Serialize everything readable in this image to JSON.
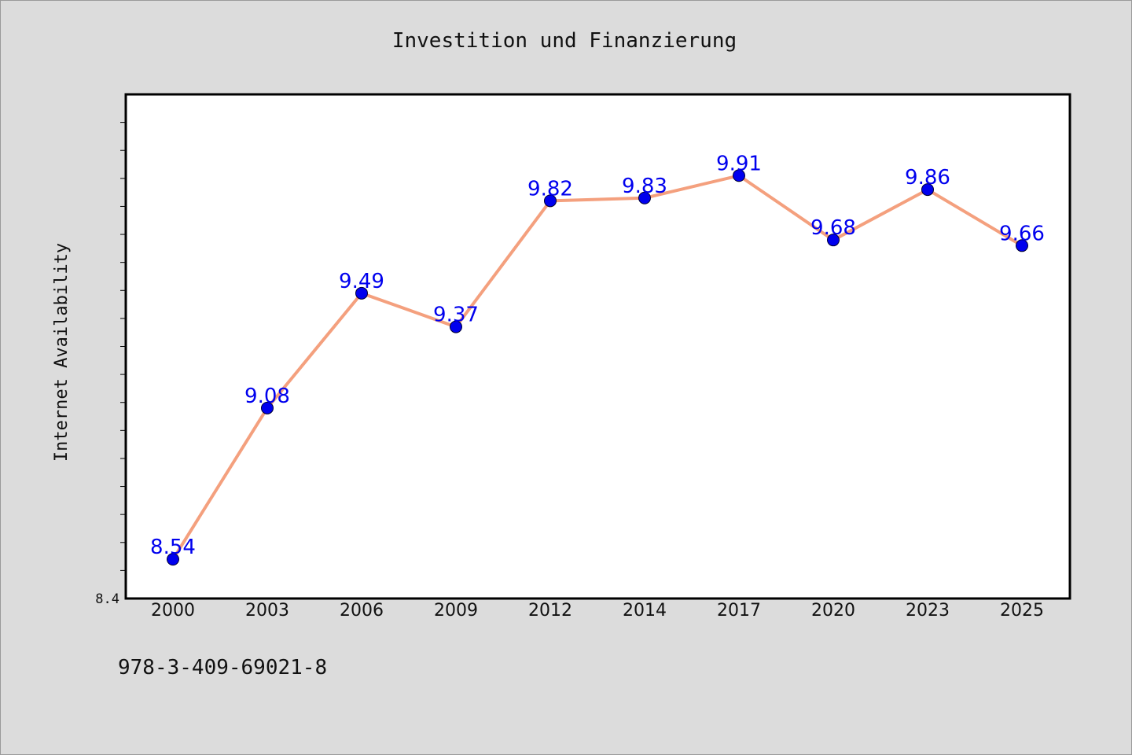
{
  "chart_data": {
    "type": "line",
    "title": "Investition und Finanzierung",
    "xlabel": "",
    "ylabel": "Internet Availability",
    "x": [
      "2000",
      "2003",
      "2006",
      "2009",
      "2012",
      "2014",
      "2017",
      "2020",
      "2023",
      "2025"
    ],
    "series": [
      {
        "values": [
          8.54,
          9.08,
          9.49,
          9.37,
          9.82,
          9.83,
          9.91,
          9.68,
          9.86,
          9.66
        ]
      }
    ],
    "data_labels": [
      "8.54",
      "9.08",
      "9.49",
      "9.37",
      "9.82",
      "9.83",
      "9.91",
      "9.68",
      "9.86",
      "9.66"
    ],
    "ylim": [
      8.4,
      10.2
    ],
    "y_tick_labels": [
      {
        "value": 8.4,
        "label": "8.4"
      }
    ],
    "grid": false,
    "legend": "none",
    "colors": {
      "line": "#f4a07e",
      "marker": "#0000ee",
      "label": "#0000ee",
      "background": "#dcdcdc",
      "plot_background": "#ffffff"
    }
  },
  "footer": {
    "code": "978-3-409-69021-8"
  }
}
